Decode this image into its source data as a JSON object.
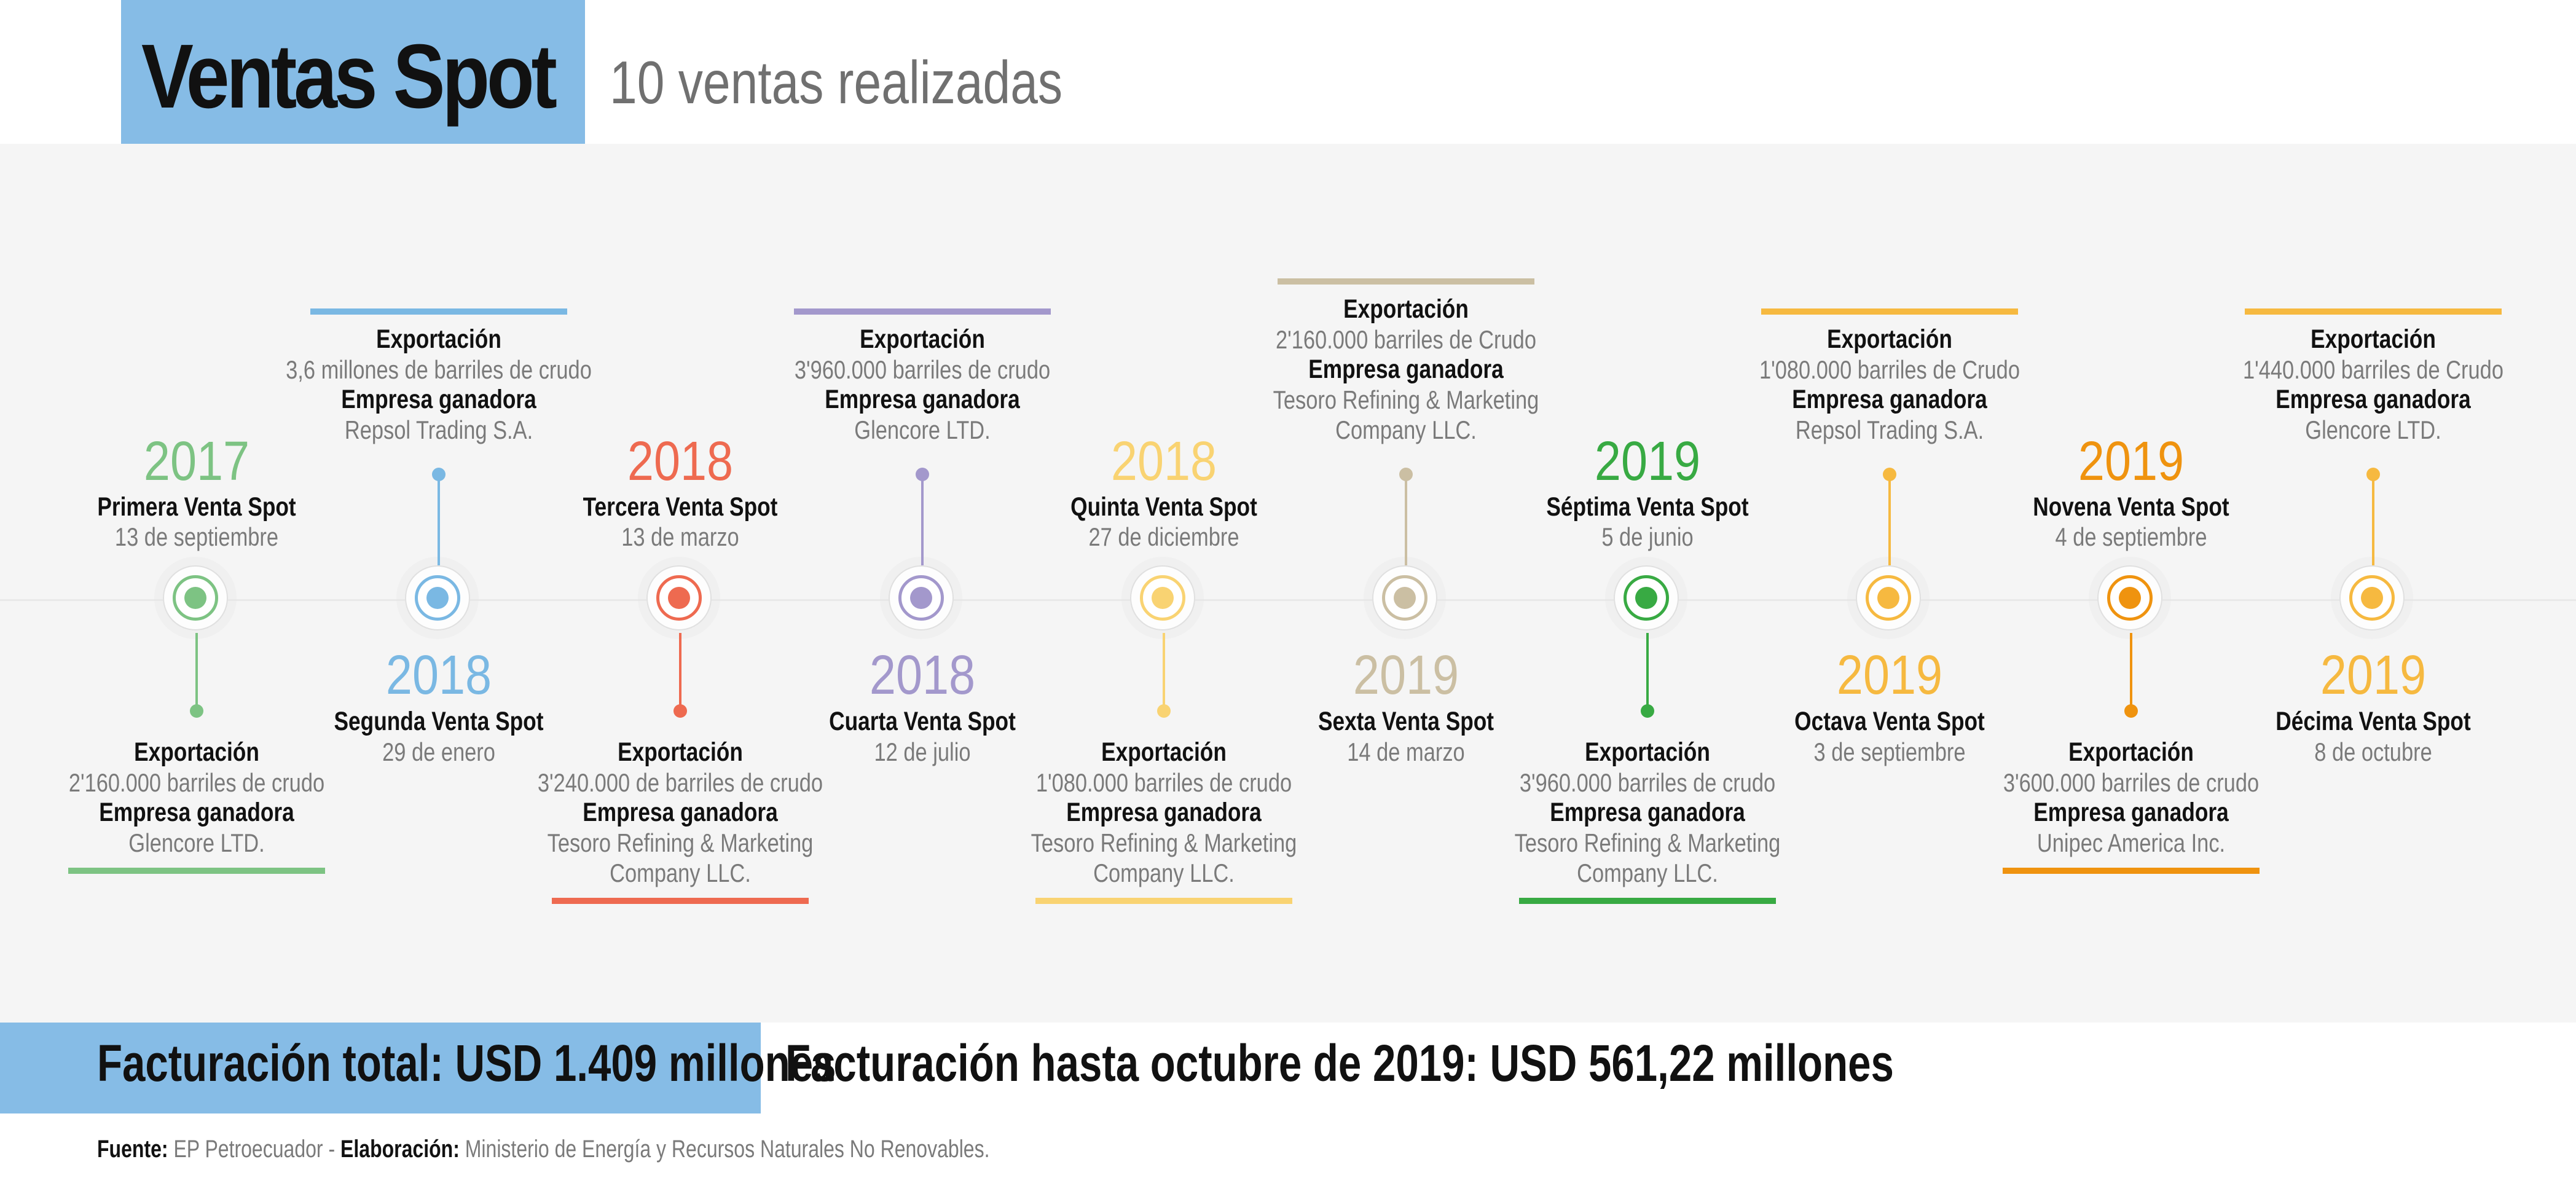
{
  "header": {
    "title": "Ventas Spot",
    "subtitle": "10 ventas realizadas"
  },
  "labels": {
    "export": "Exportación",
    "winner": "Empresa ganadora"
  },
  "events": [
    {
      "year": "2017",
      "name": "Primera Venta Spot",
      "date": "13 de septiembre",
      "barrels": "2'160.000 barriles de crudo",
      "company": [
        "Glencore LTD."
      ],
      "color": "#7dc383"
    },
    {
      "year": "2018",
      "name": "Segunda Venta Spot",
      "date": "29 de enero",
      "barrels": "3,6 millones de barriles de crudo",
      "company": [
        "Repsol Trading S.A."
      ],
      "color": "#7ab8e3"
    },
    {
      "year": "2018",
      "name": "Tercera Venta Spot",
      "date": "13 de marzo",
      "barrels": "3'240.000 de barriles de crudo",
      "company": [
        "Tesoro Refining & Marketing",
        "Company LLC."
      ],
      "color": "#ee6a50"
    },
    {
      "year": "2018",
      "name": "Cuarta Venta Spot",
      "date": "12 de julio",
      "barrels": "3'960.000 barriles de crudo",
      "company": [
        "Glencore LTD."
      ],
      "color": "#a398cc"
    },
    {
      "year": "2018",
      "name": "Quinta Venta Spot",
      "date": "27 de diciembre",
      "barrels": "1'080.000 barriles de crudo",
      "company": [
        "Tesoro Refining & Marketing",
        "Company LLC."
      ],
      "color": "#f9d372"
    },
    {
      "year": "2019",
      "name": "Sexta Venta Spot",
      "date": "14 de marzo",
      "barrels": "2'160.000 barriles de Crudo",
      "company": [
        "Tesoro Refining & Marketing",
        "Company LLC."
      ],
      "color": "#cbbfa3"
    },
    {
      "year": "2019",
      "name": "Séptima Venta Spot",
      "date": "5 de junio",
      "barrels": "3'960.000 barriles de crudo",
      "company": [
        "Tesoro Refining & Marketing",
        "Company LLC."
      ],
      "color": "#38aa43"
    },
    {
      "year": "2019",
      "name": "Octava Venta Spot",
      "date": "3 de septiembre",
      "barrels": "1'080.000 barriles de Crudo",
      "company": [
        "Repsol Trading S.A."
      ],
      "color": "#f6b940"
    },
    {
      "year": "2019",
      "name": "Novena Venta Spot",
      "date": "4 de septiembre",
      "barrels": "3'600.000 barriles de crudo",
      "company": [
        "Unipec America Inc."
      ],
      "color": "#ef930f"
    },
    {
      "year": "2019",
      "name": "Décima Venta Spot",
      "date": "8 de octubre",
      "barrels": "1'440.000 barriles de Crudo",
      "company": [
        "Glencore LTD."
      ],
      "color": "#f6b940"
    }
  ],
  "footer": {
    "total": "Facturación total: USD 1.409 millones",
    "partial": "Facturación hasta octubre de 2019: USD 561,22 millones",
    "source_label": "Fuente:",
    "source_value": "EP Petroecuador",
    "separator": "-",
    "elab_label": "Elaboración:",
    "elab_value": "Ministerio de Energía y Recursos Naturales No Renovables."
  }
}
